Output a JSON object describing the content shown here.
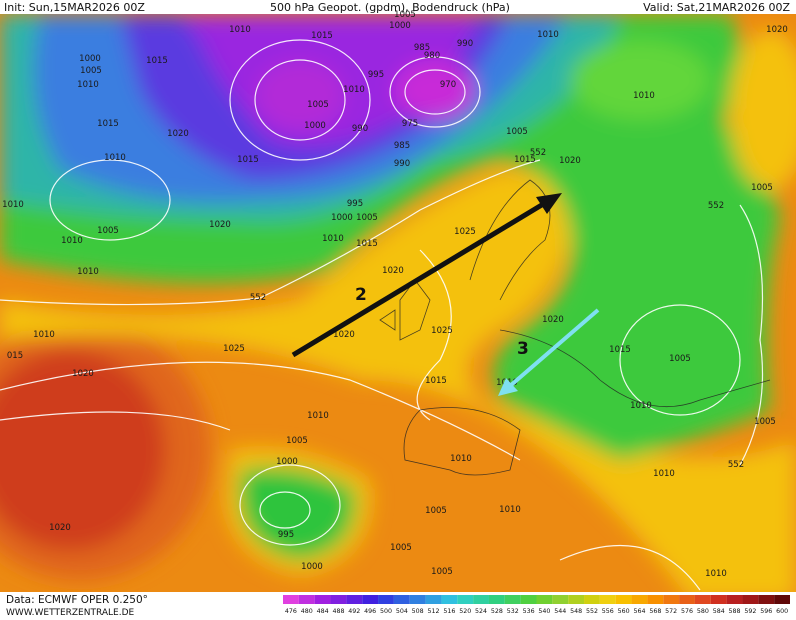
{
  "header": {
    "init": "Init: Sun,15MAR2026 00Z",
    "title": "500 hPa Geopot. (gpdm), Bodendruck (hPa)",
    "valid": "Valid: Sat,21MAR2026 00Z"
  },
  "footer": {
    "data": "Data: ECMWF OPER 0.250°",
    "site": "WWW.WETTERZENTRALE.DE"
  },
  "colorbar": {
    "labels": [
      "476",
      "480",
      "484",
      "488",
      "492",
      "496",
      "500",
      "504",
      "508",
      "512",
      "516",
      "520",
      "524",
      "528",
      "532",
      "536",
      "540",
      "544",
      "548",
      "552",
      "556",
      "560",
      "564",
      "568",
      "572",
      "576",
      "580",
      "584",
      "588",
      "592",
      "596",
      "600"
    ]
  },
  "arrows": [
    {
      "label": "2"
    },
    {
      "label": "3"
    }
  ],
  "isobar_labels": [
    "1010",
    "1015",
    "1005",
    "1000",
    "990",
    "985",
    "980",
    "970",
    "995",
    "1010",
    "1005",
    "1000",
    "990",
    "975",
    "985",
    "990",
    "1015",
    "1010",
    "1015",
    "995",
    "1000",
    "1005",
    "1020",
    "1010",
    "1010",
    "1005",
    "1010",
    "1015",
    "1020",
    "1015",
    "1000",
    "1005",
    "1010",
    "1010",
    "1015",
    "1020",
    "1005",
    "1025",
    "1020",
    "1020",
    "1025",
    "1025",
    "1020",
    "1010",
    "015",
    "1015",
    "1010",
    "1005",
    "1000",
    "995",
    "1000",
    "1020",
    "1010",
    "1005",
    "1010",
    "1005",
    "1005",
    "1010",
    "1010",
    "1005",
    "1010",
    "1005",
    "1015",
    "1020",
    "1010",
    "1010",
    "1005",
    "1020",
    "1010",
    "552",
    "552",
    "552",
    "552"
  ]
}
